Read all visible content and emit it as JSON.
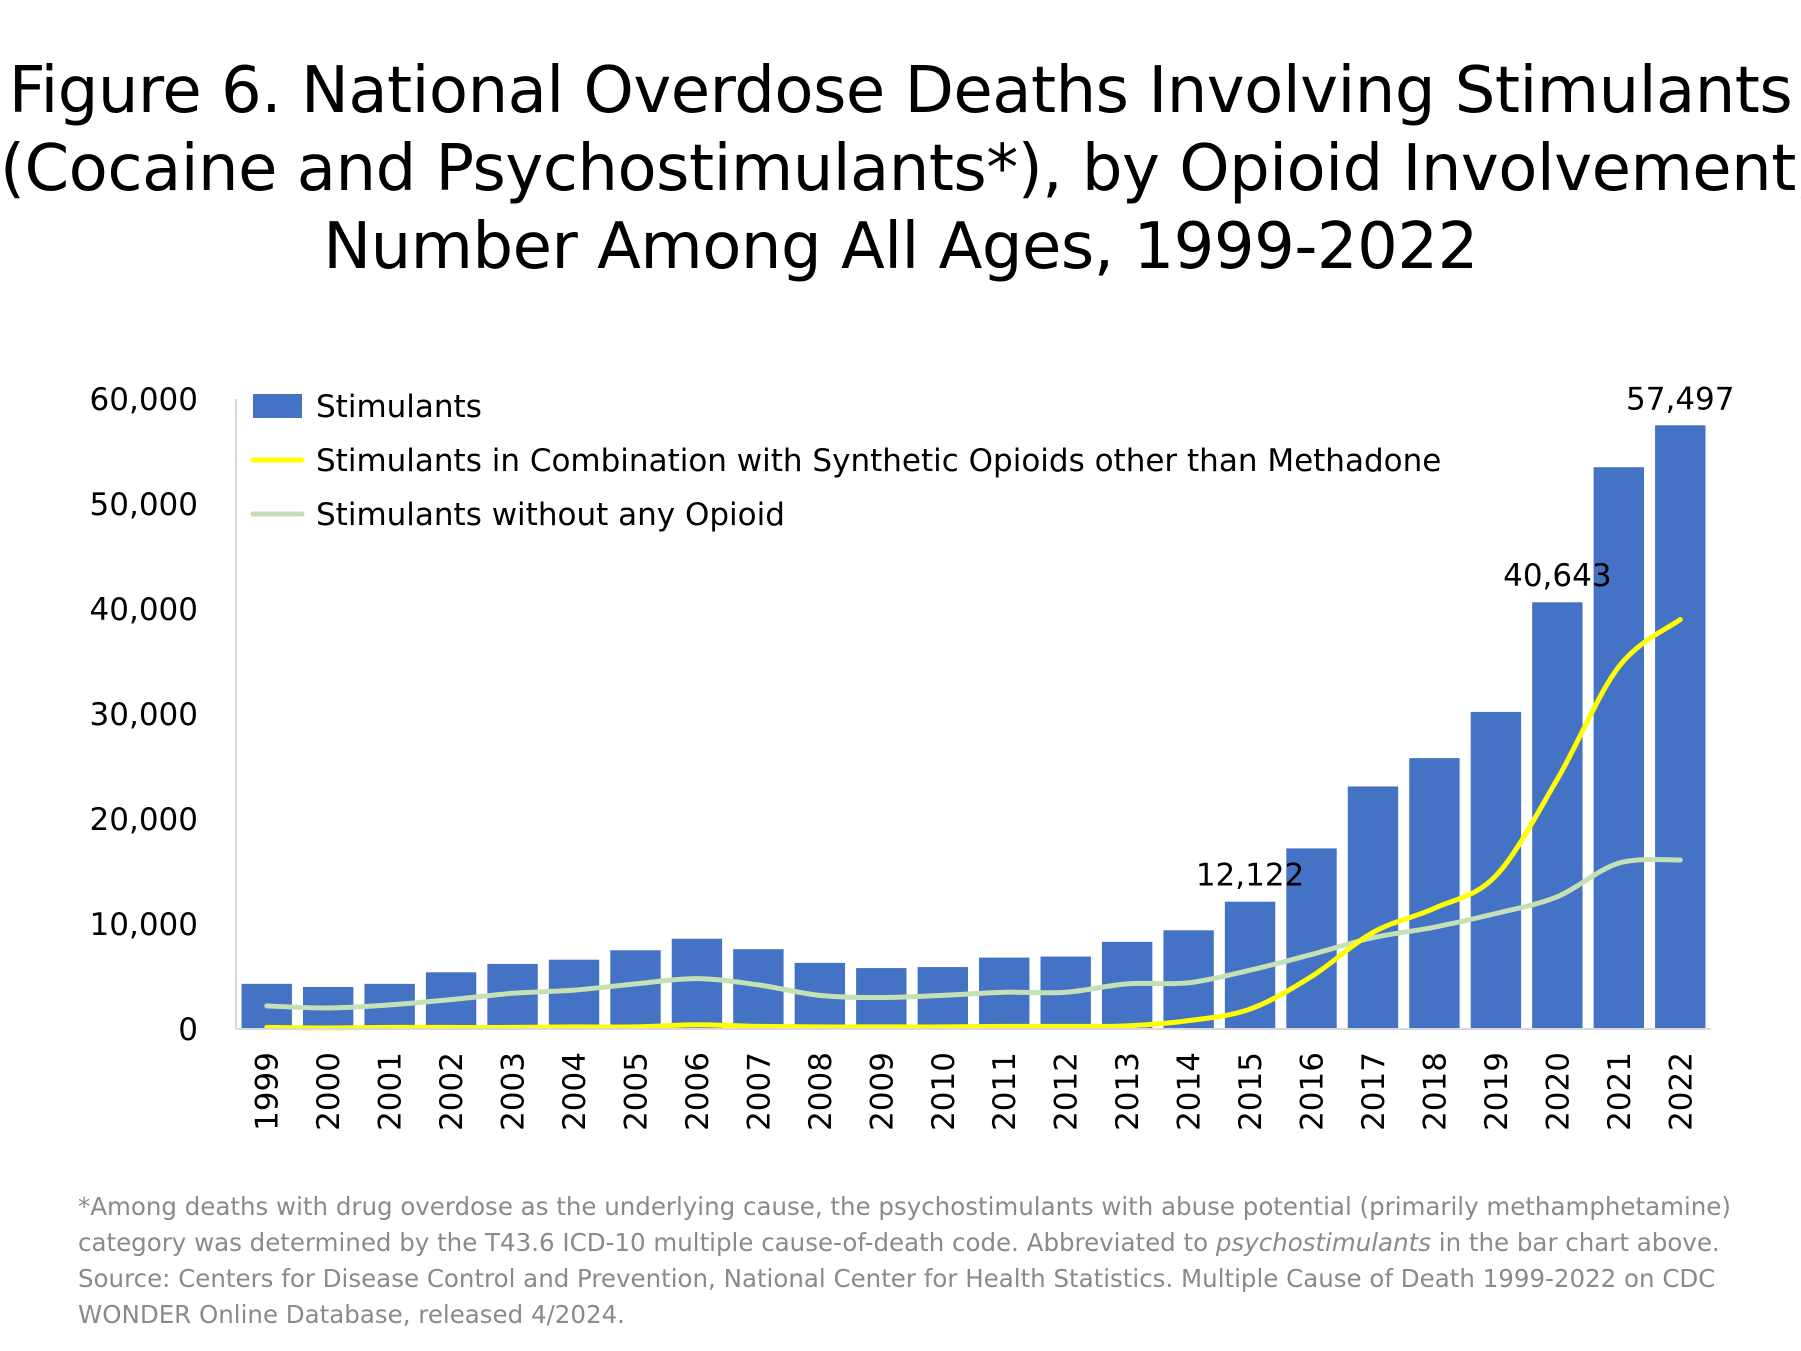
{
  "title_lines": [
    "Figure 6. National Overdose Deaths Involving Stimulants",
    "(Cocaine and Psychostimulants*), by Opioid Involvement,",
    "Number Among All Ages, 1999-2022"
  ],
  "footnote": {
    "line1": "*Among deaths with drug overdose as the underlying cause, the psychostimulants with abuse potential (primarily methamphetamine)",
    "line2_pre": "category was determined by the T43.6 ICD-10 multiple cause-of-death code. Abbreviated to ",
    "line2_em": "psychostimulants",
    "line2_post": " in the bar chart above.",
    "line3": "Source: Centers for Disease Control and Prevention, National Center for Health Statistics. Multiple Cause of Death 1999-2022 on CDC",
    "line4": "WONDER Online Database, released 4/2024."
  },
  "chart_data": {
    "type": "bar",
    "title": "Figure 6. National Overdose Deaths Involving Stimulants (Cocaine and Psychostimulants*), by Opioid Involvement, Number Among All Ages, 1999-2022",
    "xlabel": "",
    "ylabel": "",
    "ylim": [
      0,
      60000
    ],
    "yticks": [
      0,
      10000,
      20000,
      30000,
      40000,
      50000,
      60000
    ],
    "ytick_labels": [
      "0",
      "10,000",
      "20,000",
      "30,000",
      "40,000",
      "50,000",
      "60,000"
    ],
    "grid": false,
    "legend_position": "top-left",
    "categories": [
      "1999",
      "2000",
      "2001",
      "2002",
      "2003",
      "2004",
      "2005",
      "2006",
      "2007",
      "2008",
      "2009",
      "2010",
      "2011",
      "2012",
      "2013",
      "2014",
      "2015",
      "2016",
      "2017",
      "2018",
      "2019",
      "2020",
      "2021",
      "2022"
    ],
    "series": [
      {
        "name": "Stimulants",
        "kind": "bar",
        "color": "#4472c4",
        "values": [
          4300,
          4000,
          4300,
          5400,
          6200,
          6600,
          7500,
          8600,
          7600,
          6300,
          5800,
          5900,
          6800,
          6900,
          8300,
          9400,
          12122,
          17200,
          23100,
          25800,
          30200,
          40643,
          53500,
          57497
        ]
      },
      {
        "name": "Stimulants in Combination with Synthetic Opioids other than Methadone",
        "kind": "line",
        "color": "#ffff00",
        "values": [
          150,
          100,
          150,
          150,
          150,
          200,
          200,
          400,
          250,
          200,
          200,
          200,
          250,
          250,
          300,
          800,
          1900,
          5000,
          9200,
          11500,
          14600,
          23800,
          34500,
          39000
        ]
      },
      {
        "name": "Stimulants without any Opioid",
        "kind": "line",
        "color": "#c5e0b4",
        "values": [
          2200,
          2000,
          2300,
          2800,
          3400,
          3700,
          4300,
          4800,
          4200,
          3200,
          3000,
          3200,
          3500,
          3500,
          4300,
          4400,
          5600,
          7100,
          8700,
          9700,
          11000,
          12600,
          15800,
          16100
        ]
      }
    ],
    "data_labels": [
      {
        "category": "2015",
        "value": 12122,
        "text": "12,122"
      },
      {
        "category": "2020",
        "value": 40643,
        "text": "40,643"
      },
      {
        "category": "2022",
        "value": 57497,
        "text": "57,497"
      }
    ]
  }
}
